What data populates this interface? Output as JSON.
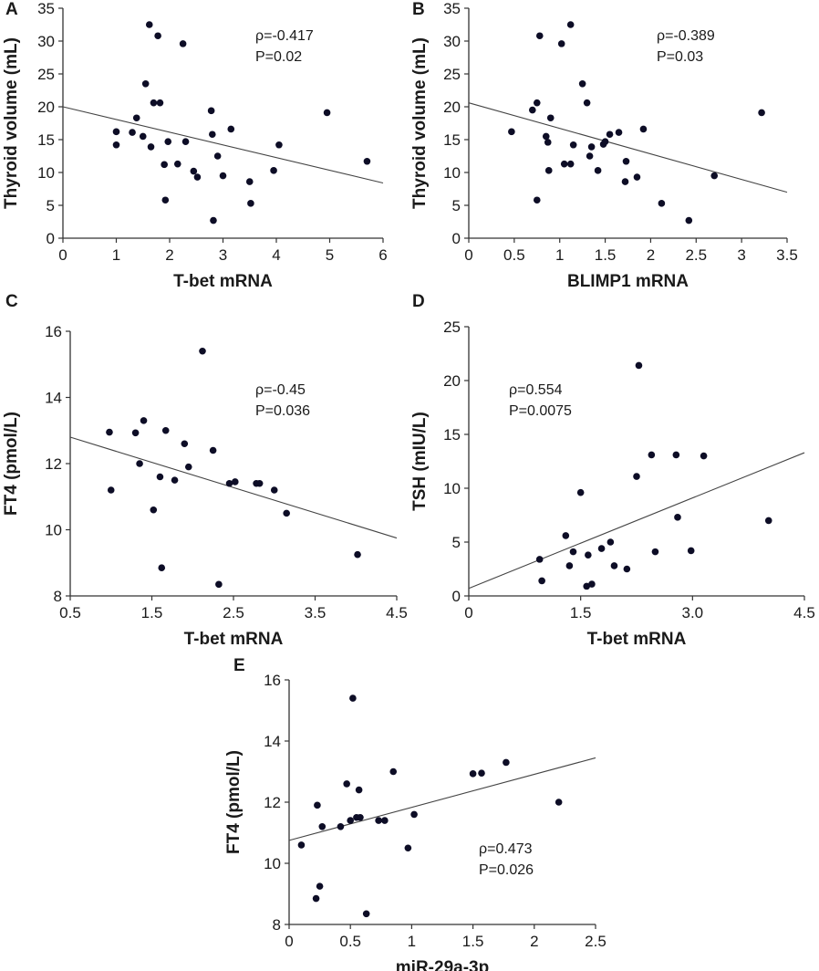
{
  "chart_data": [
    {
      "panel": "A",
      "type": "scatter",
      "xlabel": "T-bet mRNA",
      "ylabel": "Thyroid volume (mL)",
      "xlim": [
        0,
        6
      ],
      "ylim": [
        0,
        35
      ],
      "xticks": [
        0,
        1,
        2,
        3,
        4,
        5,
        6
      ],
      "yticks": [
        0,
        5,
        10,
        15,
        20,
        25,
        30,
        35
      ],
      "xtick_labels": [
        "0",
        "1",
        "2",
        "3",
        "4",
        "5",
        "6"
      ],
      "ytick_labels": [
        "0",
        "5",
        "10",
        "15",
        "20",
        "25",
        "30",
        "35"
      ],
      "rho_text": "ρ=-0.417",
      "p_text": "P=0.02",
      "fit": {
        "x": [
          0,
          6
        ],
        "y": [
          20.0,
          8.4
        ]
      },
      "points": [
        [
          1.0,
          16.2
        ],
        [
          1.0,
          14.2
        ],
        [
          1.3,
          16.1
        ],
        [
          1.38,
          18.3
        ],
        [
          1.5,
          15.5
        ],
        [
          1.55,
          23.5
        ],
        [
          1.62,
          32.5
        ],
        [
          1.65,
          13.9
        ],
        [
          1.7,
          20.6
        ],
        [
          1.78,
          30.8
        ],
        [
          1.82,
          20.6
        ],
        [
          1.9,
          11.2
        ],
        [
          1.92,
          5.8
        ],
        [
          1.97,
          14.7
        ],
        [
          2.15,
          11.3
        ],
        [
          2.25,
          29.6
        ],
        [
          2.3,
          14.7
        ],
        [
          2.45,
          10.2
        ],
        [
          2.52,
          9.3
        ],
        [
          2.78,
          19.4
        ],
        [
          2.8,
          15.8
        ],
        [
          2.82,
          2.7
        ],
        [
          2.9,
          12.5
        ],
        [
          3.0,
          9.5
        ],
        [
          3.15,
          16.6
        ],
        [
          3.5,
          8.6
        ],
        [
          3.52,
          5.3
        ],
        [
          3.95,
          10.3
        ],
        [
          4.05,
          14.2
        ],
        [
          4.95,
          19.1
        ],
        [
          5.7,
          11.7
        ]
      ]
    },
    {
      "panel": "B",
      "type": "scatter",
      "xlabel": "BLIMP1 mRNA",
      "ylabel": "Thyroid volume (mL)",
      "xlim": [
        0,
        3.5
      ],
      "ylim": [
        0,
        35
      ],
      "xticks": [
        0,
        0.5,
        1,
        1.5,
        2,
        2.5,
        3,
        3.5
      ],
      "yticks": [
        0,
        5,
        10,
        15,
        20,
        25,
        30,
        35
      ],
      "xtick_labels": [
        "0",
        "0.5",
        "1",
        "1.5",
        "2",
        "2.5",
        "3",
        "3.5"
      ],
      "ytick_labels": [
        "0",
        "5",
        "10",
        "15",
        "20",
        "25",
        "30",
        "35"
      ],
      "rho_text": "ρ=-0.389",
      "p_text": "P=0.03",
      "fit": {
        "x": [
          0,
          3.5
        ],
        "y": [
          20.6,
          7.0
        ]
      },
      "points": [
        [
          0.47,
          16.2
        ],
        [
          0.7,
          19.5
        ],
        [
          0.75,
          20.6
        ],
        [
          0.75,
          5.8
        ],
        [
          0.78,
          30.8
        ],
        [
          0.85,
          15.5
        ],
        [
          0.87,
          14.6
        ],
        [
          0.88,
          10.3
        ],
        [
          0.9,
          18.3
        ],
        [
          1.02,
          29.6
        ],
        [
          1.05,
          11.3
        ],
        [
          1.12,
          32.5
        ],
        [
          1.12,
          11.3
        ],
        [
          1.15,
          14.2
        ],
        [
          1.25,
          23.5
        ],
        [
          1.3,
          20.6
        ],
        [
          1.33,
          12.5
        ],
        [
          1.35,
          13.9
        ],
        [
          1.42,
          10.3
        ],
        [
          1.48,
          14.3
        ],
        [
          1.5,
          14.7
        ],
        [
          1.55,
          15.8
        ],
        [
          1.65,
          16.1
        ],
        [
          1.72,
          8.6
        ],
        [
          1.73,
          11.7
        ],
        [
          1.85,
          9.3
        ],
        [
          1.92,
          16.6
        ],
        [
          2.12,
          5.3
        ],
        [
          2.42,
          2.7
        ],
        [
          2.7,
          9.5
        ],
        [
          3.22,
          19.1
        ]
      ]
    },
    {
      "panel": "C",
      "type": "scatter",
      "xlabel": "T-bet mRNA",
      "ylabel": "FT4 (pmol/L)",
      "xlim": [
        0.5,
        4.5
      ],
      "ylim": [
        8,
        16
      ],
      "xticks": [
        0.5,
        1.5,
        2.5,
        3.5,
        4.5
      ],
      "yticks": [
        8,
        10,
        12,
        14,
        16
      ],
      "xtick_labels": [
        "0.5",
        "1.5",
        "2.5",
        "3.5",
        "4.5"
      ],
      "ytick_labels": [
        "8",
        "10",
        "12",
        "14",
        "16"
      ],
      "rho_text": "ρ=-0.45",
      "p_text": "P=0.036",
      "fit": {
        "x": [
          0.5,
          4.5
        ],
        "y": [
          12.8,
          9.75
        ]
      },
      "points": [
        [
          0.98,
          12.95
        ],
        [
          1.0,
          11.2
        ],
        [
          1.3,
          12.93
        ],
        [
          1.35,
          12.0
        ],
        [
          1.4,
          13.3
        ],
        [
          1.52,
          10.6
        ],
        [
          1.6,
          11.6
        ],
        [
          1.62,
          8.85
        ],
        [
          1.67,
          13.0
        ],
        [
          1.78,
          11.5
        ],
        [
          1.9,
          12.6
        ],
        [
          1.95,
          11.9
        ],
        [
          2.12,
          15.4
        ],
        [
          2.25,
          12.4
        ],
        [
          2.32,
          8.35
        ],
        [
          2.45,
          11.4
        ],
        [
          2.52,
          11.45
        ],
        [
          2.78,
          11.4
        ],
        [
          2.82,
          11.4
        ],
        [
          3.0,
          11.2
        ],
        [
          3.15,
          10.5
        ],
        [
          4.02,
          9.25
        ]
      ]
    },
    {
      "panel": "D",
      "type": "scatter",
      "xlabel": "T-bet mRNA",
      "ylabel": "TSH (mIU/L)",
      "xlim": [
        0,
        4.5
      ],
      "ylim": [
        0,
        25
      ],
      "xticks": [
        0,
        1.5,
        3.0,
        4.5
      ],
      "yticks": [
        0,
        5,
        10,
        15,
        20,
        25
      ],
      "xtick_labels": [
        "0",
        "1.5",
        "3.0",
        "4.5"
      ],
      "ytick_labels": [
        "0",
        "5",
        "10",
        "15",
        "20",
        "25"
      ],
      "rho_text": "ρ=0.554",
      "p_text": "P=0.0075",
      "fit": {
        "x": [
          0,
          4.5
        ],
        "y": [
          0.7,
          13.3
        ]
      },
      "points": [
        [
          0.95,
          3.4
        ],
        [
          0.98,
          1.4
        ],
        [
          1.3,
          5.6
        ],
        [
          1.35,
          2.8
        ],
        [
          1.4,
          4.1
        ],
        [
          1.5,
          9.6
        ],
        [
          1.58,
          0.9
        ],
        [
          1.6,
          3.8
        ],
        [
          1.65,
          1.1
        ],
        [
          1.78,
          4.4
        ],
        [
          1.9,
          5.0
        ],
        [
          1.95,
          2.8
        ],
        [
          2.12,
          2.5
        ],
        [
          2.25,
          11.1
        ],
        [
          2.28,
          21.4
        ],
        [
          2.45,
          13.1
        ],
        [
          2.5,
          4.1
        ],
        [
          2.78,
          13.1
        ],
        [
          2.8,
          7.3
        ],
        [
          2.98,
          4.2
        ],
        [
          3.15,
          13.0
        ],
        [
          4.02,
          7.0
        ]
      ]
    },
    {
      "panel": "E",
      "type": "scatter",
      "xlabel": "miR-29a-3p",
      "ylabel": "FT4 (pmol/L)",
      "xlim": [
        0,
        2.5
      ],
      "ylim": [
        8,
        16
      ],
      "xticks": [
        0,
        0.5,
        1,
        1.5,
        2,
        2.5
      ],
      "yticks": [
        8,
        10,
        12,
        14,
        16
      ],
      "xtick_labels": [
        "0",
        "0.5",
        "1",
        "1.5",
        "2",
        "2.5"
      ],
      "ytick_labels": [
        "8",
        "10",
        "12",
        "14",
        "16"
      ],
      "rho_text": "ρ=0.473",
      "p_text": "P=0.026",
      "fit": {
        "x": [
          0,
          2.5
        ],
        "y": [
          10.75,
          13.45
        ]
      },
      "points": [
        [
          0.1,
          10.6
        ],
        [
          0.22,
          8.85
        ],
        [
          0.23,
          11.9
        ],
        [
          0.25,
          9.25
        ],
        [
          0.27,
          11.2
        ],
        [
          0.42,
          11.2
        ],
        [
          0.47,
          12.6
        ],
        [
          0.5,
          11.4
        ],
        [
          0.52,
          15.4
        ],
        [
          0.55,
          11.5
        ],
        [
          0.57,
          12.4
        ],
        [
          0.58,
          11.5
        ],
        [
          0.63,
          8.35
        ],
        [
          0.73,
          11.4
        ],
        [
          0.78,
          11.4
        ],
        [
          0.85,
          13.0
        ],
        [
          0.97,
          10.5
        ],
        [
          1.02,
          11.6
        ],
        [
          1.5,
          12.93
        ],
        [
          1.57,
          12.95
        ],
        [
          1.77,
          13.3
        ],
        [
          2.2,
          12.0
        ]
      ]
    }
  ]
}
